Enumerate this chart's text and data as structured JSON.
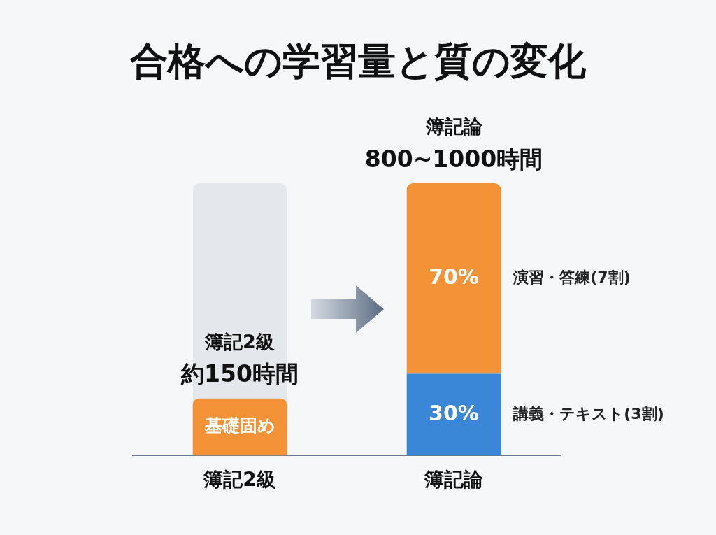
{
  "chart_data": {
    "type": "bar",
    "title": "合格への学習量と質の変化",
    "categories": [
      "簿記2級",
      "簿記論"
    ],
    "stacked": true,
    "legend": false,
    "grid": false,
    "series": [
      {
        "name": "講義・テキスト(3割)",
        "colors": [
          "#f39237",
          "#3a87d8"
        ],
        "values": [
          21,
          30
        ],
        "value_labels": [
          "基礎固め",
          "30%"
        ]
      },
      {
        "name": "演習・答練(7割)",
        "color": "#f39237",
        "values": [
          null,
          70
        ],
        "value_labels": [
          null,
          "70%"
        ]
      }
    ],
    "annotations": [
      {
        "text": "簿記2級",
        "x": "簿記2級",
        "y": 21
      },
      {
        "text": "約150時間",
        "x": "簿記2級",
        "y": 21
      },
      {
        "text": "簿記論",
        "x": "簿記論",
        "y": 100
      },
      {
        "text": "800~1000時間",
        "x": "簿記論",
        "y": 100
      }
    ]
  }
}
